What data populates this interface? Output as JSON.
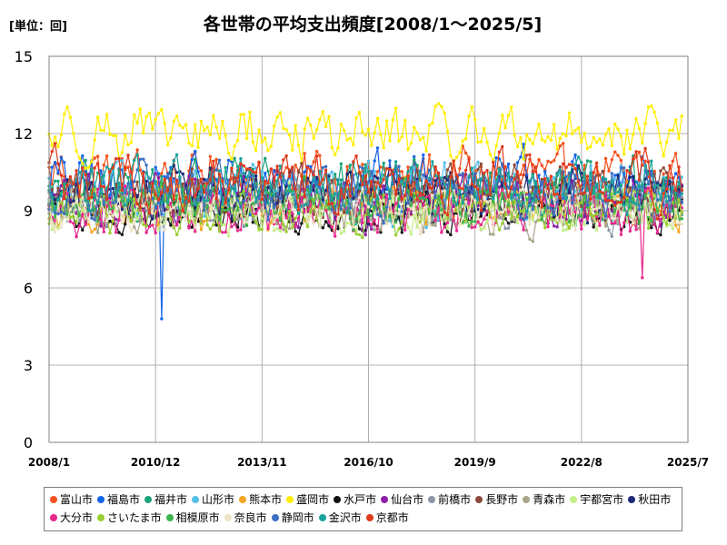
{
  "chart_data": {
    "type": "line",
    "title": "各世帯の平均支出頻度[2008/1～2025/5]",
    "unit_label": "[単位：回]",
    "x_range": [
      "2008/1",
      "2025/7"
    ],
    "x_ticks": [
      "2008/1",
      "2010/12",
      "2013/11",
      "2016/10",
      "2019/9",
      "2022/8",
      "2025/7"
    ],
    "ylim": [
      0,
      15
    ],
    "y_ticks": [
      0,
      3,
      6,
      9,
      12,
      15
    ],
    "grid": true,
    "legend_position": "bottom",
    "series": [
      {
        "name": "富山市",
        "color": "#f4511e",
        "base": 10.3,
        "amp": 0.9,
        "lo": 8.6,
        "hi": 12.4
      },
      {
        "name": "福島市",
        "color": "#1565e8",
        "base": 10.0,
        "amp": 1.0,
        "lo": 4.8,
        "hi": 12.3,
        "notes": [
          {
            "x": "2011/2",
            "y": 4.8
          }
        ]
      },
      {
        "name": "福井市",
        "color": "#1aa37a",
        "base": 9.8,
        "amp": 0.9,
        "lo": 8.0,
        "hi": 12.2
      },
      {
        "name": "山形市",
        "color": "#56c0e8",
        "base": 9.6,
        "amp": 0.9,
        "lo": 8.0,
        "hi": 12.8
      },
      {
        "name": "熊本市",
        "color": "#f5a623",
        "base": 9.2,
        "amp": 0.7,
        "lo": 7.6,
        "hi": 11.0
      },
      {
        "name": "盛岡市",
        "color": "#ffee00",
        "base": 12.0,
        "amp": 0.8,
        "lo": 10.4,
        "hi": 13.6
      },
      {
        "name": "水戸市",
        "color": "#111111",
        "base": 8.9,
        "amp": 0.6,
        "lo": 7.8,
        "hi": 11.4
      },
      {
        "name": "仙台市",
        "color": "#8e1ea8",
        "base": 9.4,
        "amp": 0.8,
        "lo": 7.0,
        "hi": 12.1
      },
      {
        "name": "前橋市",
        "color": "#8a98a8",
        "base": 9.2,
        "amp": 0.7,
        "lo": 7.8,
        "hi": 10.9
      },
      {
        "name": "長野市",
        "color": "#8b4a3c",
        "base": 9.6,
        "amp": 0.8,
        "lo": 8.0,
        "hi": 11.5
      },
      {
        "name": "青森市",
        "color": "#a8a68a",
        "base": 9.0,
        "amp": 0.7,
        "lo": 7.8,
        "hi": 11.0
      },
      {
        "name": "宇都宮市",
        "color": "#c4ef8a",
        "base": 9.0,
        "amp": 0.7,
        "lo": 7.6,
        "hi": 11.2
      },
      {
        "name": "秋田市",
        "color": "#1e2a78",
        "base": 9.7,
        "amp": 0.8,
        "lo": 8.0,
        "hi": 11.6
      },
      {
        "name": "大分市",
        "color": "#e8288c",
        "base": 8.9,
        "amp": 0.8,
        "lo": 6.4,
        "hi": 11.0,
        "notes": [
          {
            "x": "2024/4",
            "y": 6.4
          }
        ]
      },
      {
        "name": "さいたま市",
        "color": "#9acd32",
        "base": 9.0,
        "amp": 0.7,
        "lo": 7.6,
        "hi": 10.8
      },
      {
        "name": "相模原市",
        "color": "#3cb44b",
        "base": 9.3,
        "amp": 0.7,
        "lo": 7.4,
        "hi": 11.0
      },
      {
        "name": "奈良市",
        "color": "#efe3c8",
        "base": 9.1,
        "amp": 0.7,
        "lo": 7.0,
        "hi": 11.0
      },
      {
        "name": "静岡市",
        "color": "#3a6fc4",
        "base": 9.8,
        "amp": 0.8,
        "lo": 8.2,
        "hi": 12.0
      },
      {
        "name": "金沢市",
        "color": "#1ba39c",
        "base": 9.9,
        "amp": 0.8,
        "lo": 8.2,
        "hi": 12.2
      },
      {
        "name": "京都市",
        "color": "#e0391c",
        "base": 10.1,
        "amp": 0.9,
        "lo": 7.6,
        "hi": 12.5
      }
    ]
  }
}
